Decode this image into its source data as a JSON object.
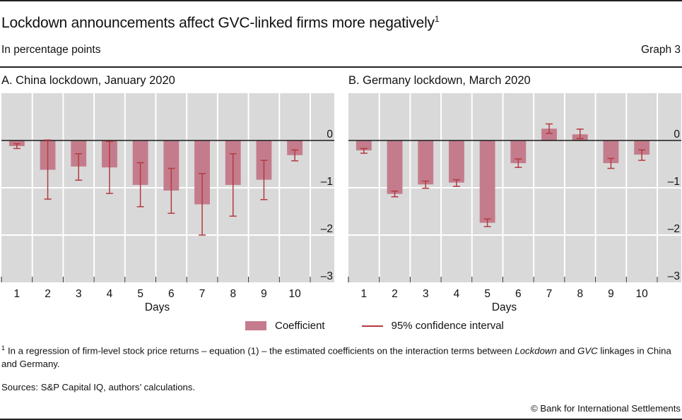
{
  "header": {
    "title": "Lockdown announcements affect GVC-linked firms more negatively",
    "title_footnote_mark": "1",
    "subtitle": "In percentage points",
    "graph_number": "Graph 3"
  },
  "legend": {
    "coefficient": "Coefficient",
    "ci": "95% confidence interval"
  },
  "footer": {
    "footnote_mark": "1",
    "footnote_part1": "In a regression of firm-level stock price returns – equation (1) – the estimated coefficients on the interaction terms between ",
    "footnote_italic1": "Lockdown",
    "footnote_part2": " and ",
    "footnote_italic2": "GVC",
    "footnote_part3": " linkages in China and Germany.",
    "sources": "Sources: S&P Capital IQ, authors’ calculations.",
    "copyright": "© Bank for International Settlements"
  },
  "colors": {
    "bar": "#c47c8c",
    "ci": "#b33a3f",
    "plot_bg": "#d9d9d9",
    "grid": "#ffffff",
    "zero_line": "#1a1a1a"
  },
  "chart_data": [
    {
      "type": "bar",
      "title": "A. China lockdown, January 2020",
      "xlabel": "Days",
      "ylabel": "",
      "categories": [
        "1",
        "2",
        "3",
        "4",
        "5",
        "6",
        "7",
        "8",
        "9",
        "10"
      ],
      "ylim": [
        -3,
        1
      ],
      "yticks": [
        0,
        -1,
        -2,
        -3
      ],
      "ytick_labels": [
        "0",
        "–1",
        "–2",
        "–3"
      ],
      "grid": true,
      "legend_position": "bottom-center",
      "series": [
        {
          "name": "Coefficient",
          "values": [
            -0.12,
            -0.62,
            -0.55,
            -0.57,
            -0.94,
            -1.06,
            -1.35,
            -0.94,
            -0.83,
            -0.31
          ]
        },
        {
          "name": "95% confidence interval",
          "upper": [
            -0.07,
            0.01,
            -0.28,
            -0.02,
            -0.47,
            -0.59,
            -0.7,
            -0.28,
            -0.42,
            -0.2
          ],
          "lower": [
            -0.17,
            -1.24,
            -0.84,
            -1.12,
            -1.4,
            -1.54,
            -2.0,
            -1.6,
            -1.25,
            -0.43
          ]
        }
      ]
    },
    {
      "type": "bar",
      "title": "B. Germany lockdown, March 2020",
      "xlabel": "Days",
      "ylabel": "",
      "categories": [
        "1",
        "2",
        "3",
        "4",
        "5",
        "6",
        "7",
        "8",
        "9",
        "10"
      ],
      "ylim": [
        -3,
        1
      ],
      "yticks": [
        0,
        -1,
        -2,
        -3
      ],
      "ytick_labels": [
        "0",
        "–1",
        "–2",
        "–3"
      ],
      "grid": true,
      "legend_position": "bottom-center",
      "series": [
        {
          "name": "Coefficient",
          "values": [
            -0.21,
            -1.13,
            -0.93,
            -0.89,
            -1.74,
            -0.48,
            0.25,
            0.13,
            -0.48,
            -0.3
          ]
        },
        {
          "name": "95% confidence interval",
          "upper": [
            -0.17,
            -1.07,
            -0.86,
            -0.83,
            -1.66,
            -0.39,
            0.35,
            0.24,
            -0.38,
            -0.2
          ],
          "lower": [
            -0.27,
            -1.19,
            -1.01,
            -0.97,
            -1.82,
            -0.57,
            0.15,
            0.04,
            -0.59,
            -0.42
          ]
        }
      ]
    }
  ]
}
